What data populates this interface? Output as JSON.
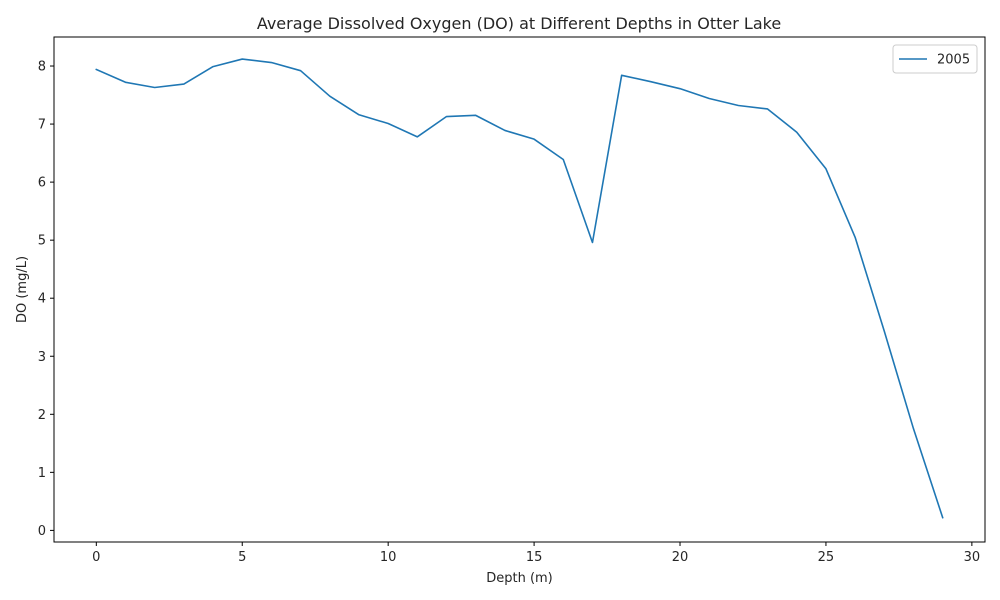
{
  "chart_data": {
    "type": "line",
    "title": "Average Dissolved Oxygen (DO) at Different Depths in Otter Lake",
    "xlabel": "Depth (m)",
    "ylabel": "DO (mg/L)",
    "xlim": [
      -1.45,
      30.45
    ],
    "ylim": [
      -0.2,
      8.5
    ],
    "xticks": [
      0,
      5,
      10,
      15,
      20,
      25,
      30
    ],
    "yticks": [
      0,
      1,
      2,
      3,
      4,
      5,
      6,
      7,
      8
    ],
    "grid": false,
    "legend_position": "top-right",
    "x": [
      0,
      1,
      2,
      3,
      4,
      5,
      6,
      7,
      8,
      9,
      10,
      11,
      12,
      13,
      14,
      15,
      16,
      17,
      18,
      19,
      20,
      21,
      22,
      23,
      24,
      25,
      26,
      27,
      28,
      29
    ],
    "series": [
      {
        "name": "2005",
        "color": "#1f77b4",
        "values": [
          7.94,
          7.72,
          7.63,
          7.69,
          7.99,
          8.12,
          8.06,
          7.92,
          7.48,
          7.16,
          7.01,
          6.78,
          7.13,
          7.15,
          6.89,
          6.74,
          6.39,
          4.96,
          7.84,
          7.73,
          7.61,
          7.44,
          7.32,
          7.26,
          6.86,
          6.23,
          5.05,
          3.43,
          1.75,
          0.22
        ]
      }
    ]
  }
}
